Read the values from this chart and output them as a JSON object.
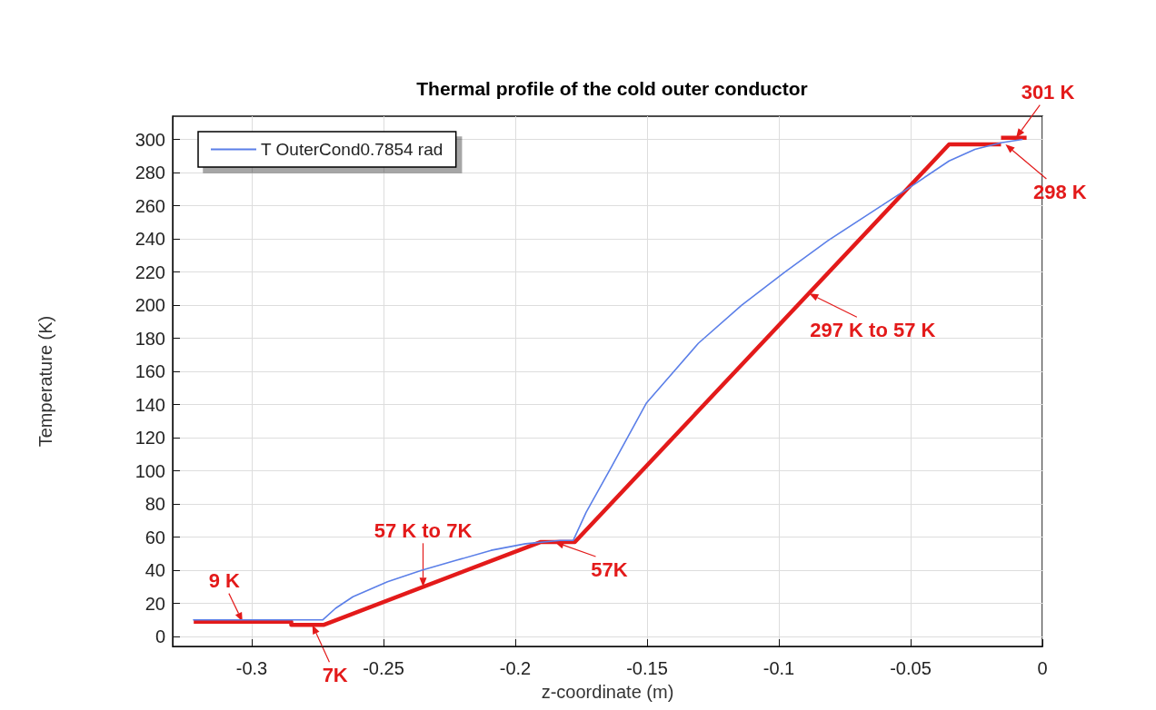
{
  "chart_data": {
    "type": "line",
    "title": "Thermal profile of the cold outer conductor",
    "xlabel": "z-coordinate (m)",
    "ylabel": "Temperature (K)",
    "xlim": [
      -0.33,
      0
    ],
    "xticks": [
      -0.3,
      -0.25,
      -0.2,
      -0.15,
      -0.1,
      -0.05,
      0
    ],
    "ylim": [
      -6,
      314
    ],
    "yticks": [
      0,
      20,
      40,
      60,
      80,
      100,
      120,
      140,
      160,
      180,
      200,
      220,
      240,
      260,
      280,
      300
    ],
    "grid": true,
    "legend": "top left",
    "marker": "none",
    "series": [
      {
        "name": "T OuterCond0.7854 rad",
        "color": "#5b7fe8",
        "x": [
          -0.3223,
          -0.2944,
          -0.2731,
          -0.2682,
          -0.2616,
          -0.2485,
          -0.2354,
          -0.2223,
          -0.2092,
          -0.1961,
          -0.183,
          -0.178,
          -0.1731,
          -0.1633,
          -0.1502,
          -0.1305,
          -0.1141,
          -0.0977,
          -0.0813,
          -0.0649,
          -0.0485,
          -0.0354,
          -0.0256,
          -0.0157,
          -0.0075
        ],
        "values": [
          10,
          10,
          10,
          17,
          24,
          33,
          40,
          46,
          52,
          56,
          58,
          58,
          75,
          103,
          141,
          177,
          200,
          220,
          239,
          256,
          273,
          287,
          294,
          298,
          300
        ]
      },
      {
        "color": "#e31a1a",
        "x": [
          -0.322,
          -0.285,
          -0.285,
          -0.2728,
          -0.1905,
          -0.1774,
          -0.0354,
          -0.0157
        ],
        "values": [
          9,
          9,
          7,
          7,
          57,
          57,
          297,
          297
        ]
      },
      {
        "color": "#e31a1a",
        "x": [
          -0.0157,
          -0.006
        ],
        "values": [
          301,
          301
        ]
      }
    ],
    "annotations": [
      {
        "text": "9 K",
        "x": -0.3035,
        "y": 9
      },
      {
        "text": "7K",
        "x": -0.277,
        "y": 7
      },
      {
        "text": "57 K to 7K",
        "x": -0.235,
        "y": 30
      },
      {
        "text": "57K",
        "x": -0.185,
        "y": 57
      },
      {
        "text": "297 K to 57 K",
        "x": -0.0885,
        "y": 207
      },
      {
        "text": "301 K",
        "x": -0.01,
        "y": 301
      },
      {
        "text": "298 K",
        "x": -0.014,
        "y": 297
      }
    ]
  }
}
